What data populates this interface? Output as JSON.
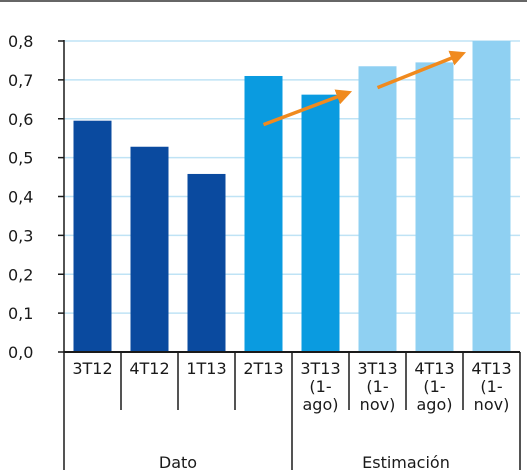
{
  "chart_data": {
    "type": "bar",
    "title": "",
    "xlabel": "",
    "ylabel": "",
    "ylim": [
      0,
      0.8
    ],
    "yticks": [
      "0,0",
      "0,1",
      "0,2",
      "0,3",
      "0,4",
      "0,5",
      "0,6",
      "0,7",
      "0,8"
    ],
    "grid": true,
    "categories": [
      [
        "3T12"
      ],
      [
        "4T12"
      ],
      [
        "1T13"
      ],
      [
        "2T13"
      ],
      [
        "3T13",
        "(1-",
        "ago)"
      ],
      [
        "3T13",
        "(1-",
        "nov)"
      ],
      [
        "4T13",
        "(1-",
        "ago)"
      ],
      [
        "4T13",
        "(1-",
        "nov)"
      ]
    ],
    "values": [
      0.595,
      0.528,
      0.458,
      0.71,
      0.662,
      0.735,
      0.745,
      0.8
    ],
    "groups": [
      {
        "label": "Dato",
        "start": 0,
        "end": 3
      },
      {
        "label": "Estimación",
        "start": 4,
        "end": 7
      }
    ],
    "colors": [
      "#0a4a9f",
      "#0a4a9f",
      "#0a4a9f",
      "#0a9be0",
      "#0a9be0",
      "#8fd0f2",
      "#8fd0f2",
      "#8fd0f2"
    ],
    "gridColor": "#bfe3f5",
    "axisColor": "#1a1a1a",
    "arrows": [
      {
        "from": {
          "x": 3.5,
          "y": 0.585
        },
        "to": {
          "x": 4.95,
          "y": 0.665
        },
        "color": "#f08a1e"
      },
      {
        "from": {
          "x": 5.5,
          "y": 0.68
        },
        "to": {
          "x": 6.95,
          "y": 0.765
        },
        "color": "#f08a1e"
      }
    ]
  }
}
